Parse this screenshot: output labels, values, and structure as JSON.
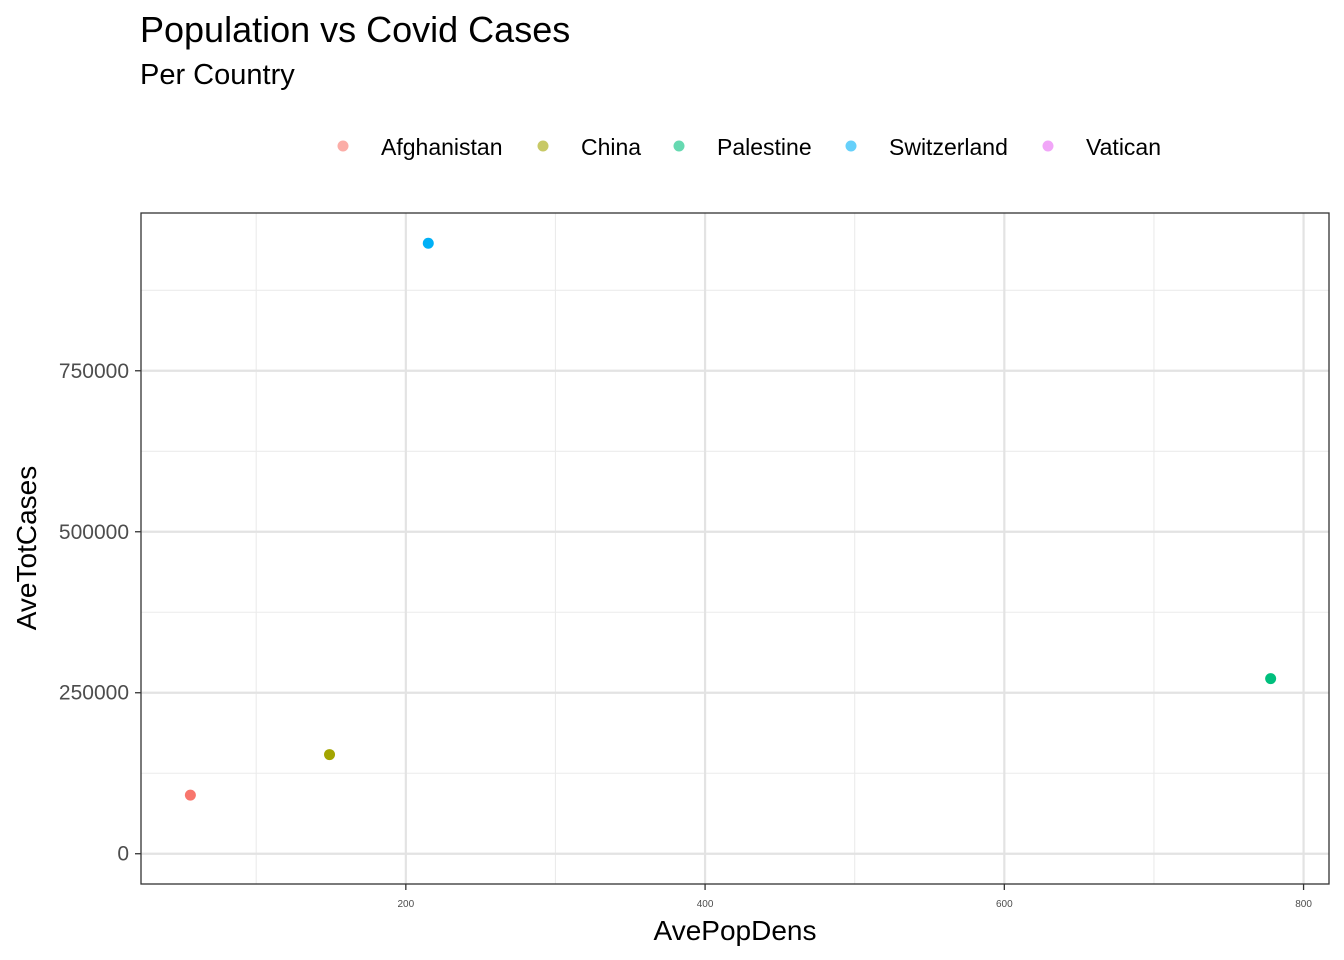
{
  "chart_data": {
    "type": "scatter",
    "title": "Population vs Covid Cases",
    "subtitle": "Per Country",
    "xlabel": "AvePopDens",
    "ylabel": "AveTotCases",
    "xlim": [
      23,
      817
    ],
    "ylim": [
      -47000,
      995000
    ],
    "x_ticks": [
      200,
      400,
      600,
      800
    ],
    "x_tick_labels": [
      "200",
      "400",
      "600",
      "800"
    ],
    "y_ticks": [
      0,
      250000,
      500000,
      750000
    ],
    "y_tick_labels": [
      "0",
      "250000",
      "500000",
      "750000"
    ],
    "grid": true,
    "legend_position": "top",
    "series": [
      {
        "name": "Afghanistan",
        "color": "#F8766D",
        "points": [
          {
            "x": 56,
            "y": 91000
          }
        ]
      },
      {
        "name": "China",
        "color": "#A3A500",
        "points": [
          {
            "x": 149,
            "y": 154000
          }
        ]
      },
      {
        "name": "Palestine",
        "color": "#00BF7D",
        "points": [
          {
            "x": 778,
            "y": 272000
          }
        ]
      },
      {
        "name": "Switzerland",
        "color": "#00B0F6",
        "points": [
          {
            "x": 215,
            "y": 948000
          }
        ]
      },
      {
        "name": "Vatican",
        "color": "#E76BF3",
        "points": []
      }
    ]
  }
}
